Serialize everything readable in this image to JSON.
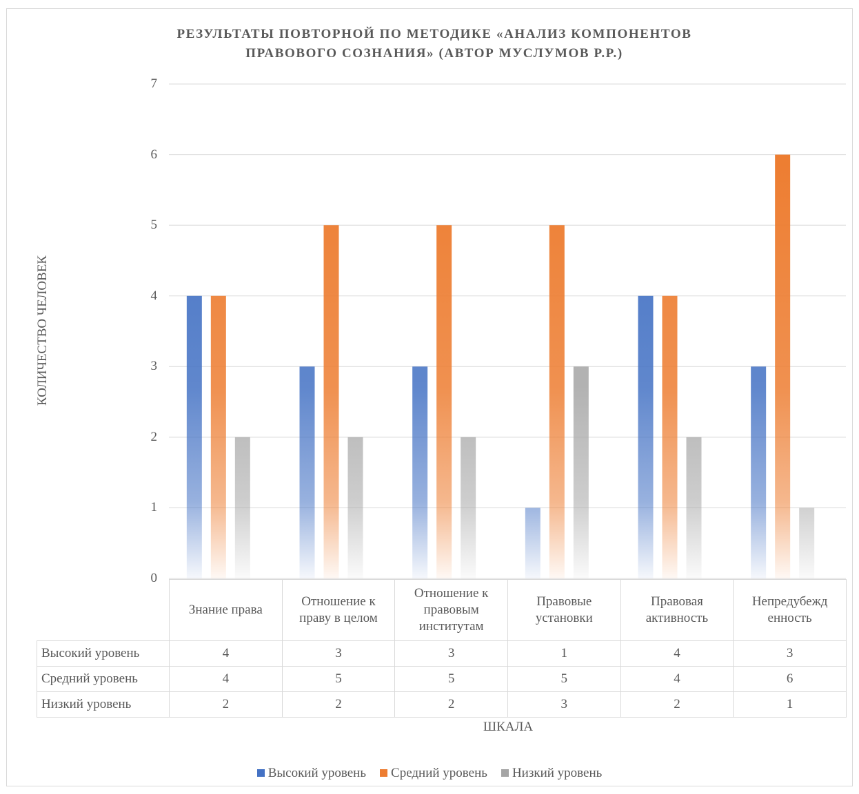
{
  "chart_data": {
    "type": "bar",
    "title_line1": "РЕЗУЛЬТАТЫ ПОВТОРНОЙ ПО МЕТОДИКЕ «АНАЛИЗ КОМПОНЕНТОВ",
    "title_line2": "ПРАВОВОГО СОЗНАНИЯ» (АВТОР МУСЛУМОВ Р.Р.)",
    "xlabel": "ШКАЛА",
    "ylabel": "КОЛИЧЕСТВО ЧЕЛОВЕК",
    "ylim": [
      0,
      7
    ],
    "yticks": [
      "0",
      "1",
      "2",
      "3",
      "4",
      "5",
      "6",
      "7"
    ],
    "grid": true,
    "legend_position": "bottom",
    "categories": [
      [
        "Знание права"
      ],
      [
        "Отношение к",
        "праву в целом"
      ],
      [
        "Отношение к",
        "правовым",
        "институтам"
      ],
      [
        "Правовые",
        "установки"
      ],
      [
        "Правовая",
        "активность"
      ],
      [
        "Непредубежд",
        "енность"
      ]
    ],
    "series": [
      {
        "name": "Высокий уровень",
        "color": "#4472c4",
        "values": [
          4,
          3,
          3,
          1,
          4,
          3
        ]
      },
      {
        "name": "Средний уровень",
        "color": "#ed7d31",
        "values": [
          4,
          5,
          5,
          5,
          4,
          6
        ]
      },
      {
        "name": "Низкий уровень",
        "color": "#a5a5a5",
        "values": [
          2,
          2,
          2,
          3,
          2,
          1
        ]
      }
    ],
    "data_table": true
  }
}
